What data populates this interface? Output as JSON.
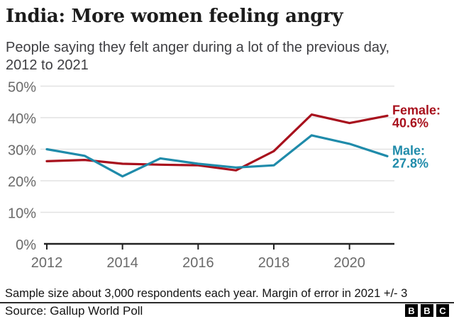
{
  "header": {
    "title": "India: More women feeling angry",
    "subtitle_line1": "People saying they felt anger during a lot of the previous day,",
    "subtitle_line2": "2012 to 2021"
  },
  "chart_data": {
    "type": "line",
    "title": "India: More women feeling angry",
    "subtitle": "People saying they felt anger during a lot of the previous day, 2012 to 2021",
    "x": [
      2012,
      2013,
      2014,
      2015,
      2016,
      2017,
      2018,
      2019,
      2020,
      2021
    ],
    "series": [
      {
        "name": "Female",
        "color": "#a8111d",
        "values": [
          26.2,
          26.6,
          25.4,
          25.1,
          24.9,
          23.3,
          29.4,
          41.0,
          38.3,
          40.6
        ],
        "end_label_line1": "Female:",
        "end_label_line2": "40.6%"
      },
      {
        "name": "Male",
        "color": "#1f8baa",
        "values": [
          30.0,
          27.9,
          21.4,
          27.1,
          25.4,
          24.2,
          24.9,
          34.4,
          31.7,
          27.8
        ],
        "end_label_line1": "Male:",
        "end_label_line2": "27.8%"
      }
    ],
    "xlim": [
      2012,
      2021
    ],
    "ylim": [
      0,
      50
    ],
    "grid": true,
    "legend_position": "line-end-labels",
    "grid_color": "#e2e2e2",
    "axis_color": "#222222",
    "tick_label_color": "#6a6a6a",
    "y_ticks": [
      {
        "v": 0,
        "label": "0%"
      },
      {
        "v": 10,
        "label": "10%"
      },
      {
        "v": 20,
        "label": "20%"
      },
      {
        "v": 30,
        "label": "30%"
      },
      {
        "v": 40,
        "label": "40%"
      },
      {
        "v": 50,
        "label": "50%"
      }
    ],
    "x_ticks": [
      {
        "v": 2012,
        "label": "2012"
      },
      {
        "v": 2014,
        "label": "2014"
      },
      {
        "v": 2016,
        "label": "2016"
      },
      {
        "v": 2018,
        "label": "2018"
      },
      {
        "v": 2020,
        "label": "2020"
      }
    ]
  },
  "footer": {
    "note": "Sample size about 3,000 respondents each year. Margin of error in 2021 +/- 3",
    "source": "Source: Gallup World Poll",
    "logo_letters": [
      "B",
      "B",
      "C"
    ]
  }
}
